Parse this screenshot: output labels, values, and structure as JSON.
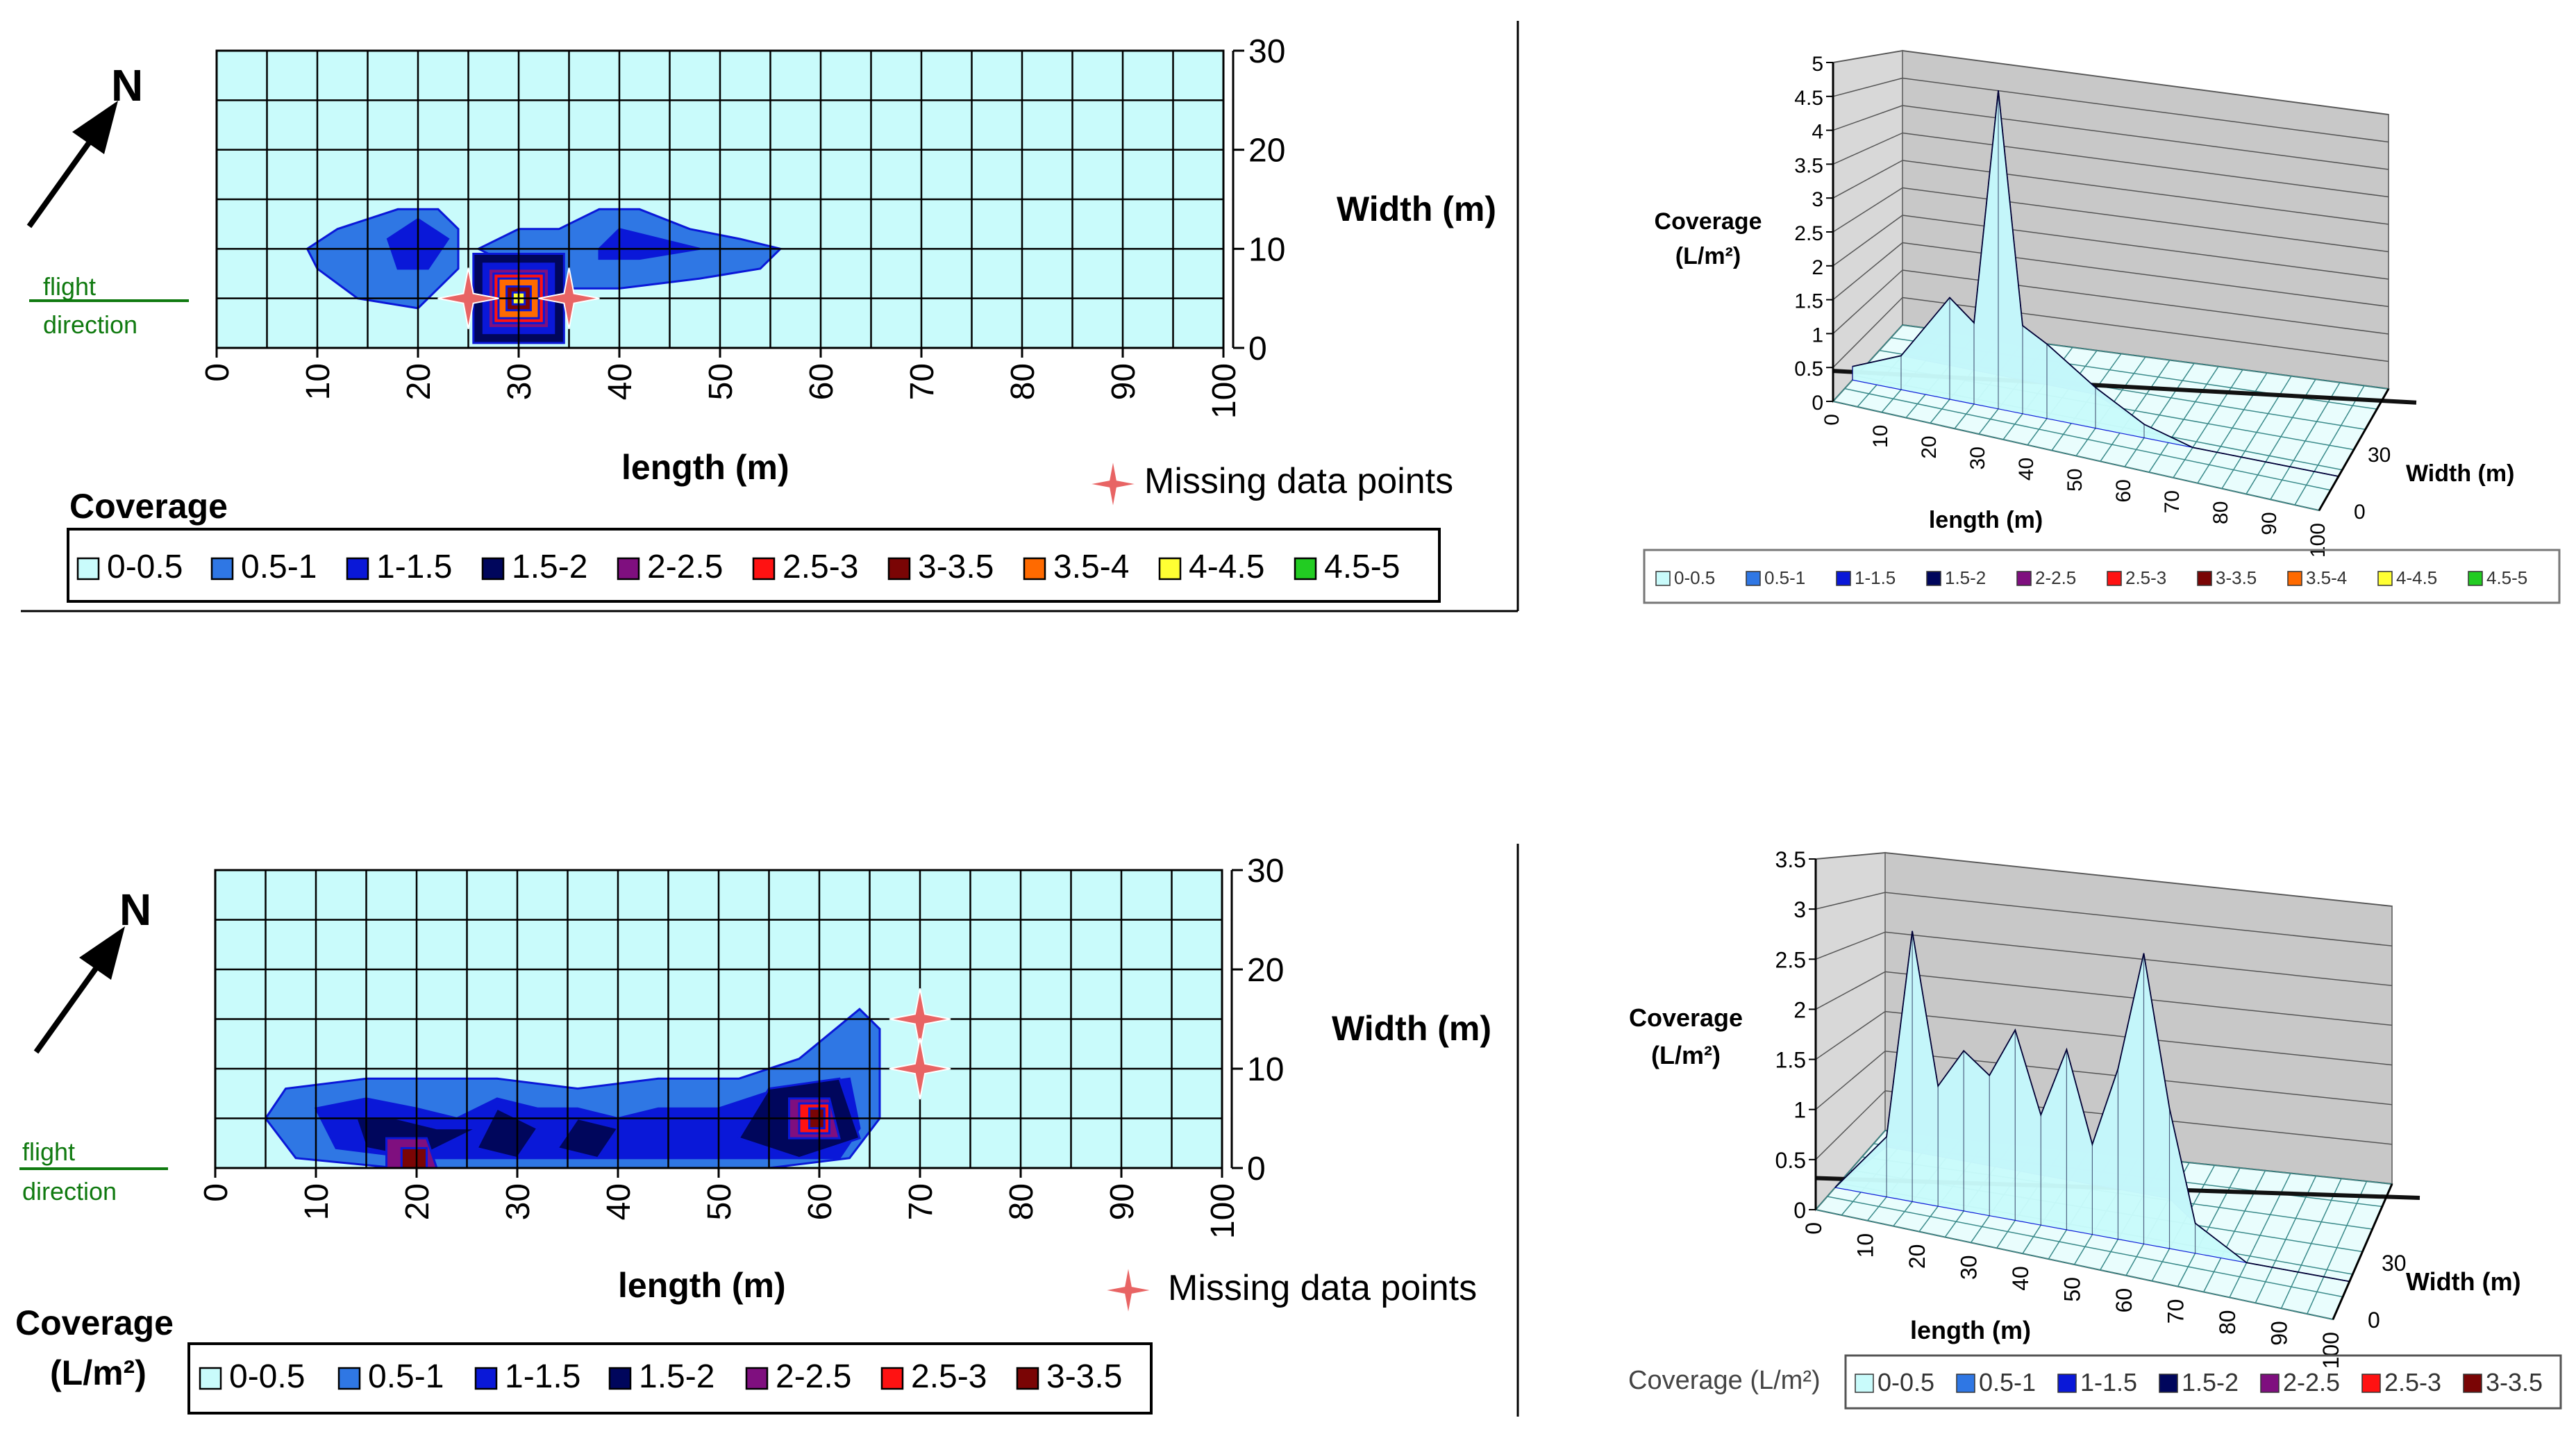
{
  "common": {
    "north": "N",
    "flight_line1": "flight",
    "flight_line2": "direction",
    "width_axis_label": "Width (m)",
    "length_axis_label": "length (m)",
    "missing_label": "Missing data points"
  },
  "colors": {
    "bg": "#c9fbfb",
    "grid": "#000000",
    "legend": [
      "#c9fbfb",
      "#2f77e4",
      "#0a18d8",
      "#00065c",
      "#7f0f7f",
      "#ff1212",
      "#7a0505",
      "#ff6a00",
      "#ffff33",
      "#22cc22"
    ],
    "missing_star": "#e86464",
    "north_arrow": "#000000",
    "flight_green": "#107a10",
    "wall": "#c8c8c8"
  },
  "chart_data": [
    {
      "id": "contour_top",
      "type": "heatmap",
      "title": "",
      "xlabel": "length (m)",
      "ylabel": "Width (m)",
      "xlim": [
        0,
        100
      ],
      "ylim": [
        0,
        30
      ],
      "x_ticks": [
        "0",
        "10",
        "20",
        "30",
        "40",
        "50",
        "60",
        "70",
        "80",
        "90",
        "100"
      ],
      "y_ticks": [
        "0",
        "10",
        "20",
        "30"
      ],
      "legend_title": "Coverage",
      "legend": [
        "0-0.5",
        "0.5-1",
        "1-1.5",
        "1.5-2",
        "2-2.5",
        "2.5-3",
        "3-3.5",
        "3.5-4",
        "4-4.5",
        "4.5-5"
      ],
      "missing_points": [
        {
          "x": 25,
          "y": 5
        },
        {
          "x": 35,
          "y": 5
        }
      ],
      "peak": {
        "x": 30,
        "y": 5,
        "value": 4.7
      }
    },
    {
      "id": "surface_top",
      "type": "area",
      "title": "",
      "xlabel": "length (m)",
      "ylabel": "Coverage (L/m²)",
      "zlabel": "Width (m)",
      "zlim": [
        0,
        5
      ],
      "z_ticks": [
        "0",
        "0.5",
        "1",
        "1.5",
        "2",
        "2.5",
        "3",
        "3.5",
        "4",
        "4.5",
        "5"
      ],
      "x_ticks": [
        "0",
        "10",
        "20",
        "30",
        "40",
        "50",
        "60",
        "70",
        "80",
        "90",
        "100"
      ],
      "width_ticks": [
        "0",
        "30"
      ],
      "profile_x": [
        0,
        10,
        20,
        25,
        30,
        35,
        40,
        50,
        60,
        70,
        80,
        90,
        100
      ],
      "profile_z": [
        0.2,
        0.5,
        1.5,
        1.2,
        4.7,
        1.3,
        1.1,
        0.6,
        0.2,
        0,
        0,
        0,
        0
      ],
      "legend": [
        "0-0.5",
        "0.5-1",
        "1-1.5",
        "1.5-2",
        "2-2.5",
        "2.5-3",
        "3-3.5",
        "3.5-4",
        "4-4.5",
        "4.5-5"
      ]
    },
    {
      "id": "contour_bottom",
      "type": "heatmap",
      "title": "",
      "xlabel": "length (m)",
      "ylabel": "Width (m)",
      "xlim": [
        0,
        100
      ],
      "ylim": [
        0,
        30
      ],
      "x_ticks": [
        "0",
        "10",
        "20",
        "30",
        "40",
        "50",
        "60",
        "70",
        "80",
        "90",
        "100"
      ],
      "y_ticks": [
        "0",
        "10",
        "20",
        "30"
      ],
      "legend_title_line1": "Coverage",
      "legend_title_line2": "(L/m²)",
      "legend": [
        "0-0.5",
        "0.5-1",
        "1-1.5",
        "1.5-2",
        "2-2.5",
        "2.5-3",
        "3-3.5"
      ],
      "missing_points": [
        {
          "x": 70,
          "y": 15
        },
        {
          "x": 70,
          "y": 10
        }
      ],
      "peaks": [
        {
          "x": 20,
          "y": 0,
          "value": 2.8
        },
        {
          "x": 60,
          "y": 5,
          "value": 2.9
        }
      ]
    },
    {
      "id": "surface_bottom",
      "type": "area",
      "title": "",
      "xlabel": "length (m)",
      "ylabel": "Coverage (L/m²)",
      "zlabel": "Width (m)",
      "zlim": [
        0,
        3.5
      ],
      "z_ticks": [
        "0",
        "0.5",
        "1",
        "1.5",
        "2",
        "2.5",
        "3",
        "3.5"
      ],
      "x_ticks": [
        "0",
        "10",
        "20",
        "30",
        "40",
        "50",
        "60",
        "70",
        "80",
        "90",
        "100"
      ],
      "width_ticks": [
        "0",
        "30"
      ],
      "profile_x": [
        0,
        10,
        15,
        20,
        25,
        30,
        35,
        40,
        45,
        50,
        55,
        60,
        65,
        70,
        80,
        100
      ],
      "profile_z": [
        0,
        0.6,
        2.7,
        1.2,
        1.6,
        1.4,
        1.9,
        1.1,
        1.8,
        0.9,
        1.7,
        2.9,
        1.4,
        0.3,
        0,
        0
      ],
      "legend_title": "Coverage (L/m²)",
      "legend": [
        "0-0.5",
        "0.5-1",
        "1-1.5",
        "1.5-2",
        "2-2.5",
        "2.5-3",
        "3-3.5"
      ]
    }
  ]
}
